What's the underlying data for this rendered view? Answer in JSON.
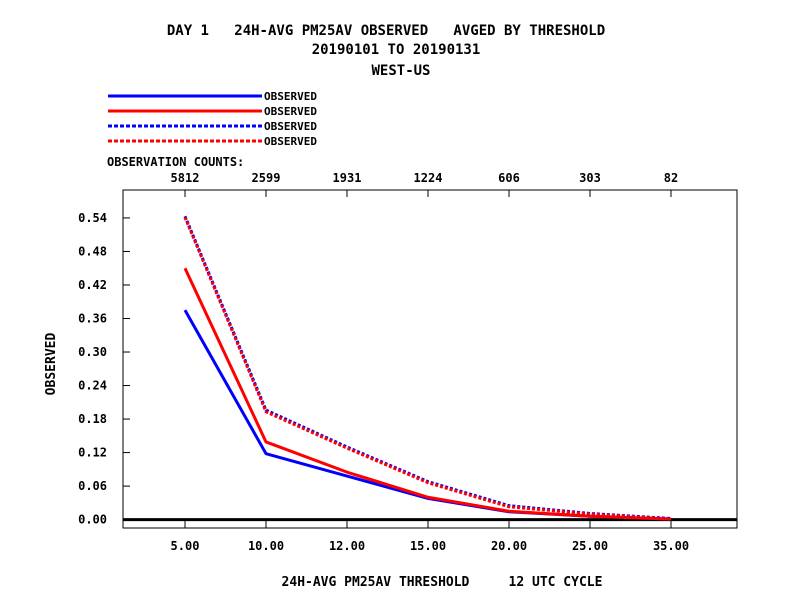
{
  "header": {
    "line1": "DAY 1   24H-AVG PM25AV OBSERVED   AVGED BY THRESHOLD",
    "line2": "20190101 TO 20190131",
    "line3": "WEST-US"
  },
  "counts_label": "OBSERVATION COUNTS:",
  "chart_data": {
    "type": "line",
    "title": "DAY 1   24H-AVG PM25AV OBSERVED   AVGED BY THRESHOLD",
    "subtitle": "20190101 TO 20190131",
    "region": "WEST-US",
    "xlabel": "24H-AVG PM25AV THRESHOLD     12 UTC CYCLE",
    "ylabel": "OBSERVED",
    "categories": [
      "5.00",
      "10.00",
      "12.00",
      "15.00",
      "20.00",
      "25.00",
      "35.00"
    ],
    "counts": [
      "5812",
      "2599",
      "1931",
      "1224",
      "606",
      "303",
      "82"
    ],
    "ylim": [
      -0.015,
      0.59
    ],
    "yticks": [
      "0.00",
      "0.06",
      "0.12",
      "0.18",
      "0.24",
      "0.30",
      "0.36",
      "0.42",
      "0.48",
      "0.54"
    ],
    "legend_position": "top-left",
    "series": [
      {
        "name": "OBSERVED",
        "color": "#0000ff",
        "dash": "solid",
        "values": [
          0.375,
          0.118,
          0.078,
          0.038,
          0.014,
          0.006,
          0.001
        ]
      },
      {
        "name": "OBSERVED",
        "color": "#ff0000",
        "dash": "solid",
        "values": [
          0.45,
          0.139,
          0.085,
          0.04,
          0.015,
          0.006,
          0.001
        ]
      },
      {
        "name": "OBSERVED",
        "color": "#0000ff",
        "dash": "dashed",
        "values": [
          0.543,
          0.196,
          0.13,
          0.068,
          0.025,
          0.011,
          0.002
        ]
      },
      {
        "name": "OBSERVED",
        "color": "#ff0000",
        "dash": "dashed",
        "values": [
          0.541,
          0.193,
          0.128,
          0.066,
          0.023,
          0.01,
          0.001
        ]
      }
    ]
  }
}
